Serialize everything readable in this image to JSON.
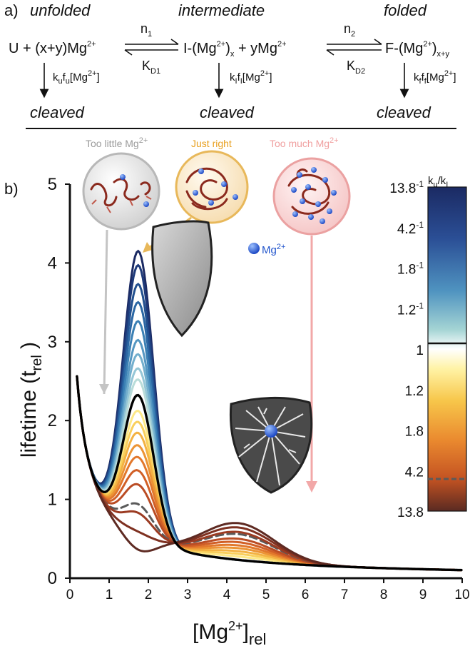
{
  "panel_a": {
    "label": "a)",
    "states": [
      {
        "name": "unfolded",
        "species": "U + (x+y)Mg",
        "charge": "2+",
        "rate": "k",
        "rate_sub": "u",
        "rate_f": "f",
        "rate_f_sub": "u",
        "rate_tail": "[Mg",
        "rate_tail_end": "]",
        "outcome": "cleaved"
      },
      {
        "name": "intermediate",
        "species": "I-(Mg",
        "charge": "2+",
        "species_sub": "x",
        "species_tail": " + yMg",
        "rate": "k",
        "rate_sub": "I",
        "rate_f": "f",
        "rate_f_sub": "I",
        "rate_tail": "[Mg",
        "rate_tail_end": "]",
        "outcome": "cleaved"
      },
      {
        "name": "folded",
        "species": "F-(Mg",
        "charge": "2+",
        "species_sub": "x+y",
        "rate": "k",
        "rate_sub": "f",
        "rate_f": "f",
        "rate_f_sub": "f",
        "rate_tail": "[Mg",
        "rate_tail_end": "]",
        "outcome": "cleaved"
      }
    ],
    "equilibria": [
      {
        "forward": "n",
        "forward_sub": "1",
        "constant": "K",
        "constant_sub": "D1"
      },
      {
        "forward": "n",
        "forward_sub": "2",
        "constant": "K",
        "constant_sub": "D2"
      }
    ]
  },
  "panel_b": {
    "label": "b)",
    "regimes": [
      {
        "text": "Too little Mg",
        "sup": "2+",
        "color": "#9a9a9a"
      },
      {
        "text": "Just right",
        "sup": "",
        "color": "#e8a020"
      },
      {
        "text": "Too much Mg",
        "sup": "2+",
        "color": "#f0a0a0"
      }
    ],
    "ion_legend": {
      "text": "Mg",
      "sup": "2+",
      "color": "#2255cc"
    }
  },
  "colorbar": {
    "title": "k",
    "title_sub1": "u",
    "title_mid": "/k",
    "title_sub2": "I",
    "ticks": [
      {
        "label": "13.8",
        "sup": "-1",
        "pos": 0.0
      },
      {
        "label": "4.2",
        "sup": "-1",
        "pos": 0.125
      },
      {
        "label": "1.8",
        "sup": "-1",
        "pos": 0.25
      },
      {
        "label": "1.2",
        "sup": "-1",
        "pos": 0.375
      },
      {
        "label": "1",
        "sup": "",
        "pos": 0.5
      },
      {
        "label": "1.2",
        "sup": "",
        "pos": 0.625
      },
      {
        "label": "1.8",
        "sup": "",
        "pos": 0.75
      },
      {
        "label": "4.2",
        "sup": "",
        "pos": 0.875
      },
      {
        "label": "13.8",
        "sup": "",
        "pos": 1.0
      }
    ]
  },
  "chart_data": {
    "type": "line",
    "title": "",
    "xlabel": "[Mg",
    "xlabel_sup": "2+",
    "xlabel_tail": "]",
    "xlabel_sub": "rel",
    "ylabel": "lifetime (t",
    "ylabel_sub": "rel",
    "ylabel_tail": " )",
    "xlim": [
      0,
      10
    ],
    "ylim": [
      0,
      5
    ],
    "xticks": [
      0,
      1,
      2,
      3,
      4,
      5,
      6,
      7,
      8,
      9,
      10
    ],
    "yticks": [
      0,
      1,
      2,
      3,
      4,
      5
    ],
    "grid": false,
    "model": {
      "baseline_decay": 0.23,
      "peak_x": 1.75,
      "peak_width": 0.55,
      "tail_x": 4.3,
      "tail_width": 1.3,
      "tail_height": 0.55
    },
    "series": [
      {
        "name": "k_u/k_I = 13.8^-1",
        "peak": 4.15,
        "color": "#1b2a63",
        "style": "solid"
      },
      {
        "name": "k_u/k_I = 9^-1",
        "peak": 3.97,
        "color": "#1e3a7a",
        "style": "solid"
      },
      {
        "name": "k_u/k_I = 6^-1",
        "peak": 3.73,
        "color": "#22508f",
        "style": "solid"
      },
      {
        "name": "k_u/k_I = 4.2^-1",
        "peak": 3.5,
        "color": "#2b67a4",
        "style": "solid"
      },
      {
        "name": "k_u/k_I = 3^-1",
        "peak": 3.26,
        "color": "#3b80b4",
        "style": "solid"
      },
      {
        "name": "k_u/k_I = 2.3^-1",
        "peak": 3.02,
        "color": "#5597c2",
        "style": "solid"
      },
      {
        "name": "k_u/k_I = 1.8^-1",
        "peak": 2.84,
        "color": "#73afcd",
        "style": "solid"
      },
      {
        "name": "k_u/k_I = 1.4^-1",
        "peak": 2.66,
        "color": "#95c6d6",
        "style": "solid"
      },
      {
        "name": "k_u/k_I = 1.2^-1",
        "peak": 2.52,
        "color": "#b9dcd9",
        "style": "solid"
      },
      {
        "name": "k_u/k_I = 1",
        "peak": 2.32,
        "color": "#000000",
        "style": "bold"
      },
      {
        "name": "k_u/k_I = 1.1",
        "peak": 2.12,
        "color": "#fde887",
        "style": "solid"
      },
      {
        "name": "k_u/k_I = 1.2",
        "peak": 1.98,
        "color": "#f9cf5c",
        "style": "solid"
      },
      {
        "name": "k_u/k_I = 1.4",
        "peak": 1.84,
        "color": "#f3b242",
        "style": "solid"
      },
      {
        "name": "k_u/k_I = 1.8",
        "peak": 1.68,
        "color": "#ec9434",
        "style": "solid"
      },
      {
        "name": "k_u/k_I = 2.3",
        "peak": 1.53,
        "color": "#e2782c",
        "style": "solid"
      },
      {
        "name": "k_u/k_I = 3",
        "peak": 1.36,
        "color": "#d15f26",
        "style": "solid"
      },
      {
        "name": "k_u/k_I = 4.2",
        "peak": 1.18,
        "color": "#ba4c24",
        "style": "solid"
      },
      {
        "name": "k_u/k_I = 5",
        "peak": 0.93,
        "color": "#5a5a5a",
        "style": "dashed"
      },
      {
        "name": "k_u/k_I = 6",
        "peak": 0.82,
        "color": "#9b3b22",
        "style": "solid"
      },
      {
        "name": "k_u/k_I = 9",
        "peak": 0.58,
        "color": "#7e3020",
        "style": "solid"
      },
      {
        "name": "k_u/k_I = 13.8",
        "peak": 0.35,
        "color": "#5e2a22",
        "style": "solid"
      }
    ]
  }
}
